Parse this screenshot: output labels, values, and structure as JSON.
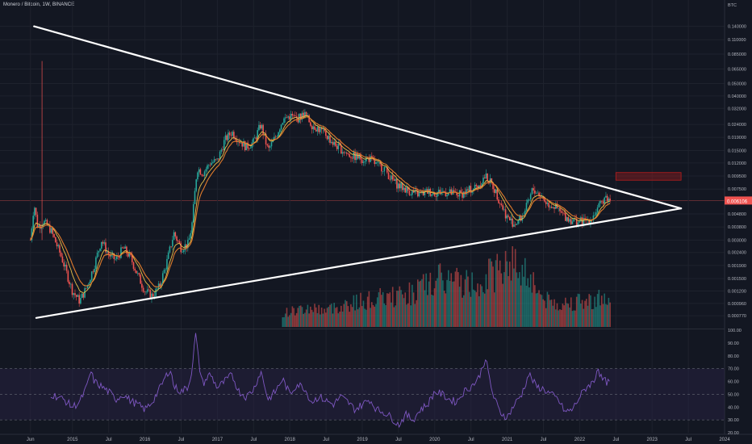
{
  "header": {
    "symbol": "Monero / Bitcoin",
    "interval": "1W",
    "exchange": "BINANCE"
  },
  "colors": {
    "background": "#131722",
    "grid": "#1e222d",
    "up": "#26a69a",
    "down": "#ef5350",
    "ema_fast": "#e8c14a",
    "ema_slow": "#e07b2c",
    "trendline": "#ffffff",
    "rsi_line": "#7e57c2",
    "rsi_band": "#2a2447",
    "price_line": "#ef5350",
    "resistance_box": "#b71c1c"
  },
  "chart_data": [
    {
      "type": "candlestick",
      "panel": "price",
      "y_axis_unit": "BTC",
      "y_scale": "log",
      "ylim": [
        0.00062,
        0.2
      ],
      "y_ticks": [
        "0.140000",
        "0.110000",
        "0.085000",
        "0.065000",
        "0.050000",
        "0.040000",
        "0.032000",
        "0.024000",
        "0.019000",
        "0.015000",
        "0.012000",
        "0.009500",
        "0.007500",
        "0.006106",
        "0.004800",
        "0.003800",
        "0.003000",
        "0.002400",
        "0.001900",
        "0.001500",
        "0.001200",
        "0.000960",
        "0.000770"
      ],
      "last_price": "0.006106",
      "x_ticks": [
        "Jun",
        "2015",
        "Jul",
        "2016",
        "Jul",
        "2017",
        "Jul",
        "2018",
        "Jul",
        "2019",
        "Jul",
        "2020",
        "Jul",
        "2021",
        "Jul",
        "2022",
        "Jul",
        "2023",
        "Jul",
        "2024"
      ],
      "x_tick_years": [
        2014.42,
        2015.0,
        2015.5,
        2016.0,
        2016.5,
        2017.0,
        2017.5,
        2018.0,
        2018.5,
        2019.0,
        2019.5,
        2020.0,
        2020.5,
        2021.0,
        2021.5,
        2022.0,
        2022.5,
        2023.0,
        2023.5,
        2024.0
      ],
      "xlim": [
        2014.0,
        2024.0
      ],
      "price_path": [
        [
          2014.42,
          0.003
        ],
        [
          2014.47,
          0.0058
        ],
        [
          2014.52,
          0.0038
        ],
        [
          2014.6,
          0.0042
        ],
        [
          2014.7,
          0.0036
        ],
        [
          2014.85,
          0.0022
        ],
        [
          2015.0,
          0.0012
        ],
        [
          2015.1,
          0.001
        ],
        [
          2015.2,
          0.0013
        ],
        [
          2015.3,
          0.0019
        ],
        [
          2015.4,
          0.003
        ],
        [
          2015.5,
          0.0023
        ],
        [
          2015.6,
          0.0021
        ],
        [
          2015.7,
          0.0026
        ],
        [
          2015.8,
          0.0022
        ],
        [
          2015.9,
          0.0016
        ],
        [
          2016.0,
          0.0012
        ],
        [
          2016.1,
          0.0011
        ],
        [
          2016.2,
          0.0013
        ],
        [
          2016.3,
          0.002
        ],
        [
          2016.4,
          0.0034
        ],
        [
          2016.5,
          0.0026
        ],
        [
          2016.6,
          0.0028
        ],
        [
          2016.65,
          0.004
        ],
        [
          2016.72,
          0.011
        ],
        [
          2016.8,
          0.01
        ],
        [
          2016.9,
          0.012
        ],
        [
          2017.0,
          0.0125
        ],
        [
          2017.1,
          0.018
        ],
        [
          2017.2,
          0.021
        ],
        [
          2017.3,
          0.018
        ],
        [
          2017.4,
          0.016
        ],
        [
          2017.5,
          0.0175
        ],
        [
          2017.6,
          0.024
        ],
        [
          2017.7,
          0.015
        ],
        [
          2017.8,
          0.019
        ],
        [
          2017.9,
          0.026
        ],
        [
          2018.0,
          0.028
        ],
        [
          2018.1,
          0.0265
        ],
        [
          2018.2,
          0.029
        ],
        [
          2018.3,
          0.024
        ],
        [
          2018.4,
          0.022
        ],
        [
          2018.5,
          0.02
        ],
        [
          2018.6,
          0.017
        ],
        [
          2018.7,
          0.0155
        ],
        [
          2018.8,
          0.014
        ],
        [
          2018.9,
          0.0135
        ],
        [
          2019.0,
          0.013
        ],
        [
          2019.1,
          0.013
        ],
        [
          2019.2,
          0.0115
        ],
        [
          2019.3,
          0.011
        ],
        [
          2019.4,
          0.009
        ],
        [
          2019.5,
          0.008
        ],
        [
          2019.6,
          0.0075
        ],
        [
          2019.7,
          0.007
        ],
        [
          2019.8,
          0.0068
        ],
        [
          2019.9,
          0.0072
        ],
        [
          2020.0,
          0.007
        ],
        [
          2020.1,
          0.0072
        ],
        [
          2020.2,
          0.007
        ],
        [
          2020.3,
          0.0068
        ],
        [
          2020.4,
          0.007
        ],
        [
          2020.5,
          0.0075
        ],
        [
          2020.6,
          0.008
        ],
        [
          2020.7,
          0.0095
        ],
        [
          2020.8,
          0.008
        ],
        [
          2020.9,
          0.006
        ],
        [
          2021.0,
          0.0045
        ],
        [
          2021.1,
          0.004
        ],
        [
          2021.2,
          0.0045
        ],
        [
          2021.3,
          0.006
        ],
        [
          2021.35,
          0.0075
        ],
        [
          2021.45,
          0.0068
        ],
        [
          2021.55,
          0.0058
        ],
        [
          2021.65,
          0.0055
        ],
        [
          2021.75,
          0.0048
        ],
        [
          2021.85,
          0.0044
        ],
        [
          2021.95,
          0.0042
        ],
        [
          2022.05,
          0.0042
        ],
        [
          2022.15,
          0.0044
        ],
        [
          2022.25,
          0.0052
        ],
        [
          2022.35,
          0.0066
        ],
        [
          2022.42,
          0.0061
        ]
      ],
      "volume_path": [
        [
          2017.9,
          0.18
        ],
        [
          2018.1,
          0.22
        ],
        [
          2018.3,
          0.25
        ],
        [
          2018.5,
          0.22
        ],
        [
          2018.7,
          0.28
        ],
        [
          2018.9,
          0.32
        ],
        [
          2019.1,
          0.35
        ],
        [
          2019.3,
          0.38
        ],
        [
          2019.5,
          0.4
        ],
        [
          2019.7,
          0.45
        ],
        [
          2019.9,
          0.55
        ],
        [
          2020.1,
          0.62
        ],
        [
          2020.3,
          0.6
        ],
        [
          2020.5,
          0.55
        ],
        [
          2020.7,
          0.65
        ],
        [
          2020.9,
          0.75
        ],
        [
          2021.0,
          0.95
        ],
        [
          2021.1,
          0.8
        ],
        [
          2021.3,
          0.7
        ],
        [
          2021.5,
          0.35
        ],
        [
          2021.7,
          0.3
        ],
        [
          2021.9,
          0.32
        ],
        [
          2022.1,
          0.33
        ],
        [
          2022.3,
          0.38
        ],
        [
          2022.42,
          0.3
        ]
      ],
      "trendlines": [
        {
          "name": "upper-trendline",
          "start": [
            2014.47,
            0.14
          ],
          "end": [
            2023.4,
            0.0053
          ]
        },
        {
          "name": "lower-trendline",
          "start": [
            2014.5,
            0.00074
          ],
          "end": [
            2023.4,
            0.0053
          ]
        }
      ],
      "resistance_box": {
        "x0": 2022.5,
        "x1": 2023.4,
        "y0": 0.0088,
        "y1": 0.0101
      }
    },
    {
      "type": "line",
      "panel": "rsi",
      "ylim": [
        20,
        100
      ],
      "y_ticks": [
        "100.00",
        "90.00",
        "80.00",
        "70.00",
        "60.00",
        "50.00",
        "40.00",
        "30.00",
        "20.00"
      ],
      "band": [
        30,
        70
      ],
      "midline": 50,
      "series": [
        {
          "values": [
            [
              2014.7,
              50
            ],
            [
              2014.8,
              48
            ],
            [
              2014.9,
              45
            ],
            [
              2015.0,
              40
            ],
            [
              2015.1,
              44
            ],
            [
              2015.2,
              56
            ],
            [
              2015.25,
              68
            ],
            [
              2015.3,
              60
            ],
            [
              2015.4,
              56
            ],
            [
              2015.5,
              52
            ],
            [
              2015.6,
              46
            ],
            [
              2015.7,
              50
            ],
            [
              2015.8,
              45
            ],
            [
              2015.9,
              42
            ],
            [
              2016.0,
              38
            ],
            [
              2016.1,
              44
            ],
            [
              2016.2,
              54
            ],
            [
              2016.3,
              65
            ],
            [
              2016.35,
              70
            ],
            [
              2016.4,
              56
            ],
            [
              2016.5,
              52
            ],
            [
              2016.6,
              56
            ],
            [
              2016.65,
              70
            ],
            [
              2016.7,
              97
            ],
            [
              2016.75,
              72
            ],
            [
              2016.8,
              58
            ],
            [
              2016.9,
              66
            ],
            [
              2017.0,
              55
            ],
            [
              2017.1,
              60
            ],
            [
              2017.2,
              65
            ],
            [
              2017.3,
              52
            ],
            [
              2017.4,
              48
            ],
            [
              2017.5,
              54
            ],
            [
              2017.6,
              68
            ],
            [
              2017.7,
              46
            ],
            [
              2017.8,
              52
            ],
            [
              2017.9,
              62
            ],
            [
              2018.0,
              50
            ],
            [
              2018.1,
              58
            ],
            [
              2018.2,
              55
            ],
            [
              2018.3,
              44
            ],
            [
              2018.4,
              48
            ],
            [
              2018.5,
              45
            ],
            [
              2018.6,
              42
            ],
            [
              2018.7,
              48
            ],
            [
              2018.8,
              44
            ],
            [
              2018.9,
              38
            ],
            [
              2019.0,
              42
            ],
            [
              2019.1,
              46
            ],
            [
              2019.2,
              38
            ],
            [
              2019.3,
              36
            ],
            [
              2019.4,
              32
            ],
            [
              2019.5,
              26
            ],
            [
              2019.6,
              34
            ],
            [
              2019.7,
              30
            ],
            [
              2019.8,
              38
            ],
            [
              2019.9,
              42
            ],
            [
              2020.0,
              52
            ],
            [
              2020.1,
              50
            ],
            [
              2020.2,
              46
            ],
            [
              2020.3,
              44
            ],
            [
              2020.4,
              52
            ],
            [
              2020.5,
              56
            ],
            [
              2020.6,
              62
            ],
            [
              2020.7,
              78
            ],
            [
              2020.8,
              50
            ],
            [
              2020.9,
              36
            ],
            [
              2021.0,
              32
            ],
            [
              2021.1,
              42
            ],
            [
              2021.2,
              50
            ],
            [
              2021.3,
              66
            ],
            [
              2021.4,
              56
            ],
            [
              2021.5,
              54
            ],
            [
              2021.6,
              50
            ],
            [
              2021.7,
              46
            ],
            [
              2021.8,
              36
            ],
            [
              2021.9,
              38
            ],
            [
              2022.0,
              48
            ],
            [
              2022.1,
              56
            ],
            [
              2022.2,
              60
            ],
            [
              2022.25,
              72
            ],
            [
              2022.3,
              62
            ],
            [
              2022.42,
              58
            ]
          ]
        }
      ]
    }
  ]
}
